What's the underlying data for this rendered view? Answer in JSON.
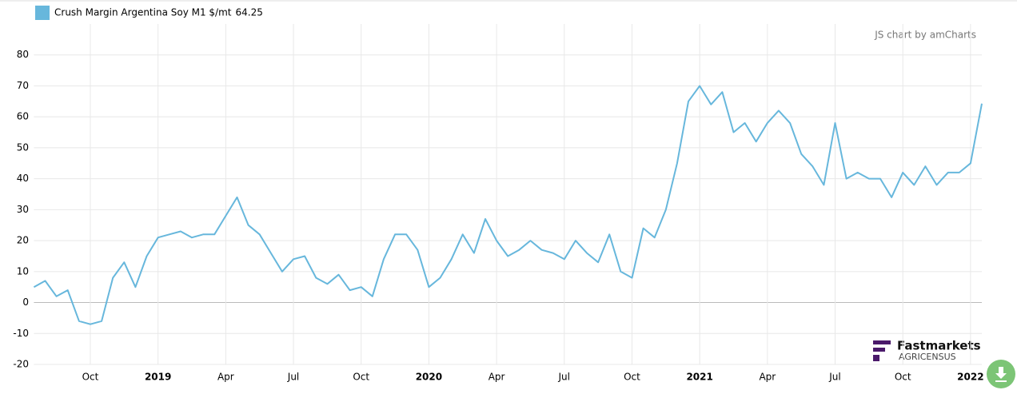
{
  "chart_data": {
    "type": "line",
    "series": [
      {
        "name": "Crush Margin Argentina Soy M1 $/mt",
        "color": "#67b7dc",
        "values": [
          5,
          7,
          2,
          4,
          -6,
          -7,
          -6,
          8,
          13,
          5,
          15,
          21,
          22,
          23,
          21,
          22,
          22,
          28,
          34,
          25,
          22,
          16,
          10,
          14,
          15,
          8,
          6,
          9,
          4,
          5,
          2,
          14,
          22,
          22,
          17,
          5,
          8,
          14,
          22,
          16,
          27,
          20,
          15,
          17,
          20,
          17,
          16,
          14,
          20,
          16,
          13,
          22,
          10,
          8,
          24,
          21,
          30,
          45,
          65,
          70,
          64,
          68,
          55,
          58,
          52,
          58,
          62,
          58,
          48,
          44,
          38,
          58,
          40,
          42,
          40,
          40,
          34,
          42,
          38,
          44,
          38,
          42,
          42,
          45,
          64.25
        ]
      }
    ],
    "categories": [
      null,
      null,
      null,
      null,
      null,
      "Oct",
      null,
      null,
      null,
      null,
      null,
      "2019",
      null,
      null,
      null,
      null,
      null,
      "Apr",
      null,
      null,
      null,
      null,
      null,
      "Jul",
      null,
      null,
      null,
      null,
      null,
      "Oct",
      null,
      null,
      null,
      null,
      null,
      "2020",
      null,
      null,
      null,
      null,
      null,
      "Apr",
      null,
      null,
      null,
      null,
      null,
      "Jul",
      null,
      null,
      null,
      null,
      null,
      "Oct",
      null,
      null,
      null,
      null,
      null,
      "2021",
      null,
      null,
      null,
      null,
      null,
      "Apr",
      null,
      null,
      null,
      null,
      null,
      "Jul",
      null,
      null,
      null,
      null,
      null,
      "Oct",
      null,
      null,
      null,
      null,
      null,
      "2022",
      null
    ],
    "ylim": [
      -20,
      90
    ],
    "yticks": [
      -20,
      -10,
      0,
      10,
      20,
      30,
      40,
      50,
      60,
      70,
      80
    ],
    "grid": true,
    "credits": "JS chart by amCharts",
    "logo": {
      "title": "Fastmarkets",
      "subtitle": "AGRICENSUS"
    }
  }
}
